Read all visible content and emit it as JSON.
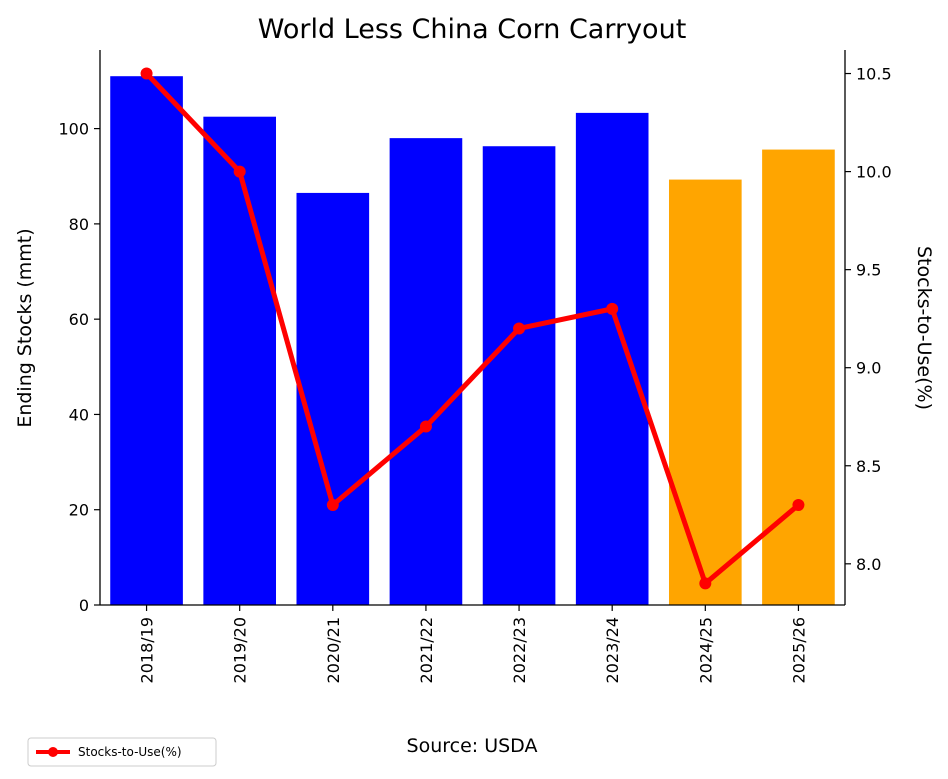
{
  "chart_data": {
    "type": "bar",
    "title": "World Less China Corn Carryout",
    "categories": [
      "2018/19",
      "2019/20",
      "2020/21",
      "2021/22",
      "2022/23",
      "2023/24",
      "2024/25",
      "2025/26"
    ],
    "series": [
      {
        "type": "bar",
        "axis": "left",
        "values": [
          111,
          102.5,
          86.5,
          98,
          96.3,
          103.3,
          89.3,
          95.6
        ],
        "colors": [
          "#0000ff",
          "#0000ff",
          "#0000ff",
          "#0000ff",
          "#0000ff",
          "#0000ff",
          "#ffa500",
          "#ffa500"
        ]
      },
      {
        "type": "line",
        "axis": "right",
        "name": "Stocks-to-Use(%)",
        "values": [
          10.5,
          10.0,
          8.3,
          8.7,
          9.2,
          9.3,
          7.9,
          8.3
        ],
        "color": "#ff0000"
      }
    ],
    "ylabel": "Ending Stocks (mmt)",
    "ylabel_right": "Stocks-to-Use(%)",
    "ylim": [
      0,
      116.5
    ],
    "ylim_right": [
      7.79,
      10.62
    ],
    "yticks": [
      0,
      20,
      40,
      60,
      80,
      100
    ],
    "yticks_right": [
      8.0,
      8.5,
      9.0,
      9.5,
      10.0,
      10.5
    ],
    "yticks_right_labels": [
      "8.0",
      "8.5",
      "9.0",
      "9.5",
      "10.0",
      "10.5"
    ],
    "legend": {
      "position": "bottom-left",
      "entries": [
        "Stocks-to-Use(%)"
      ]
    },
    "grid": false,
    "annotation": "Source: USDA"
  }
}
